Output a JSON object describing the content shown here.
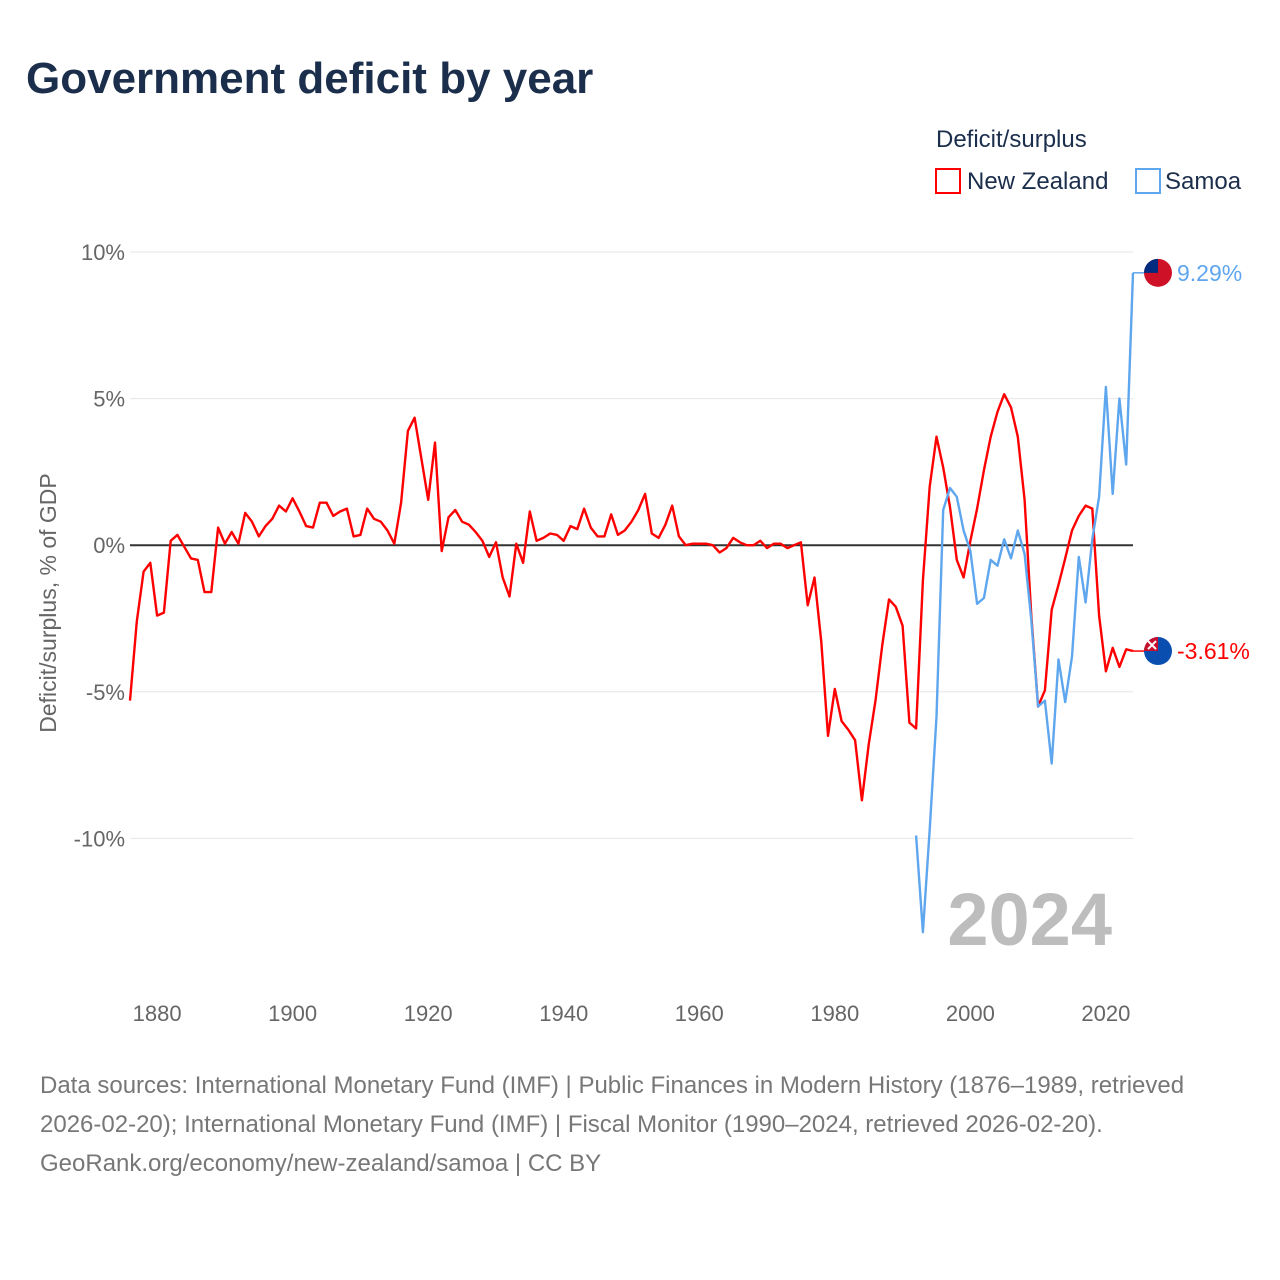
{
  "chart_data": {
    "type": "line",
    "title": "Government deficit by year",
    "ylabel": "Deficit/surplus, % of GDP",
    "xlabel": "",
    "xlim": [
      1876,
      2024
    ],
    "ylim": [
      -15,
      10
    ],
    "x_ticks": [
      1880,
      1900,
      1920,
      1940,
      1960,
      1980,
      2000,
      2020
    ],
    "y_ticks": [
      {
        "value": 10,
        "label": "10%"
      },
      {
        "value": 5,
        "label": "5%"
      },
      {
        "value": 0,
        "label": "0%"
      },
      {
        "value": -5,
        "label": "-5%"
      },
      {
        "value": -10,
        "label": "-10%"
      }
    ],
    "grid": true,
    "legend_title": "Deficit/surplus",
    "legend_position": "top-right",
    "year_watermark": "2024",
    "series": [
      {
        "name": "New Zealand",
        "color": "#ff0000",
        "start_year": 1876,
        "end_label": "-3.61%",
        "values": [
          -5.3,
          -2.6,
          -0.9,
          -0.6,
          -2.4,
          -2.3,
          0.15,
          0.35,
          -0.05,
          -0.45,
          -0.5,
          -1.6,
          -1.6,
          0.6,
          0.05,
          0.45,
          0.05,
          1.1,
          0.8,
          0.3,
          0.65,
          0.9,
          1.35,
          1.15,
          1.6,
          1.15,
          0.65,
          0.6,
          1.45,
          1.45,
          1.0,
          1.15,
          1.25,
          0.3,
          0.35,
          1.25,
          0.9,
          0.8,
          0.5,
          0.05,
          1.45,
          3.9,
          4.35,
          2.95,
          1.55,
          3.5,
          -0.2,
          0.95,
          1.2,
          0.8,
          0.7,
          0.45,
          0.15,
          -0.4,
          0.1,
          -1.1,
          -1.75,
          0.05,
          -0.6,
          1.15,
          0.15,
          0.25,
          0.4,
          0.35,
          0.15,
          0.65,
          0.55,
          1.25,
          0.6,
          0.3,
          0.3,
          1.05,
          0.35,
          0.5,
          0.8,
          1.2,
          1.75,
          0.4,
          0.25,
          0.7,
          1.35,
          0.3,
          0,
          0.05,
          0.05,
          0.05,
          0,
          -0.25,
          -0.1,
          0.25,
          0.1,
          0,
          0,
          0.15,
          -0.1,
          0.05,
          0.05,
          -0.1,
          0,
          0.1,
          -2.05,
          -1.1,
          -3.3,
          -6.5,
          -4.9,
          -6.0,
          -6.3,
          -6.65,
          -8.7,
          -6.8,
          -5.3,
          -3.4,
          -1.85,
          -2.1,
          -2.75,
          -6.05,
          -6.25,
          -1.2,
          2.0,
          3.7,
          2.65,
          1.3,
          -0.5,
          -1.1,
          0.15,
          1.25,
          2.55,
          3.7,
          4.55,
          5.15,
          4.7,
          3.7,
          1.55,
          -2.4,
          -5.5,
          -4.95,
          -2.2,
          -1.35,
          -0.45,
          0.5,
          1.0,
          1.35,
          1.25,
          -2.4,
          -4.3,
          -3.5,
          -4.15,
          -3.55,
          -3.61
        ]
      },
      {
        "name": "Samoa",
        "color": "#5ea6ee",
        "start_year": 1992,
        "end_label": "9.29%",
        "values": [
          -9.9,
          -13.2,
          -9.7,
          -5.85,
          1.2,
          1.95,
          1.65,
          0.5,
          -0.2,
          -2.0,
          -1.8,
          -0.5,
          -0.7,
          0.2,
          -0.45,
          0.5,
          -0.3,
          -2.55,
          -5.5,
          -5.3,
          -7.45,
          -3.9,
          -5.35,
          -3.8,
          -0.4,
          -1.95,
          0.2,
          1.65,
          5.4,
          1.75,
          5.0,
          2.75,
          9.29
        ]
      }
    ]
  },
  "footer": {
    "sources": "Data sources: International Monetary Fund (IMF) | Public Finances in Modern History (1876–1989, retrieved 2026-02-20); International Monetary Fund (IMF) | Fiscal Monitor (1990–2024, retrieved 2026-02-20).",
    "credit": "GeoRank.org/economy/new-zealand/samoa | CC BY"
  }
}
